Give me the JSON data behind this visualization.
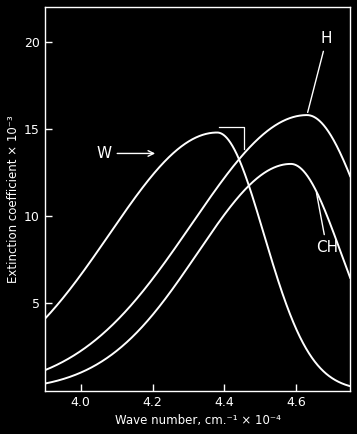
{
  "title": "",
  "xlabel": "Wave number, cm.⁻¹ × 10⁻⁴",
  "ylabel": "Extinction coefficient × 10⁻³",
  "xlim": [
    3.9,
    4.75
  ],
  "ylim": [
    0,
    22
  ],
  "xticks": [
    4.0,
    4.2,
    4.4,
    4.6
  ],
  "yticks": [
    5,
    10,
    15,
    20
  ],
  "background_color": "#000000",
  "text_color": "#ffffff",
  "curve_color": "#ffffff",
  "label_H": "H",
  "label_CH": "CH",
  "label_W": "W",
  "figsize": [
    3.57,
    4.34
  ],
  "dpi": 100
}
